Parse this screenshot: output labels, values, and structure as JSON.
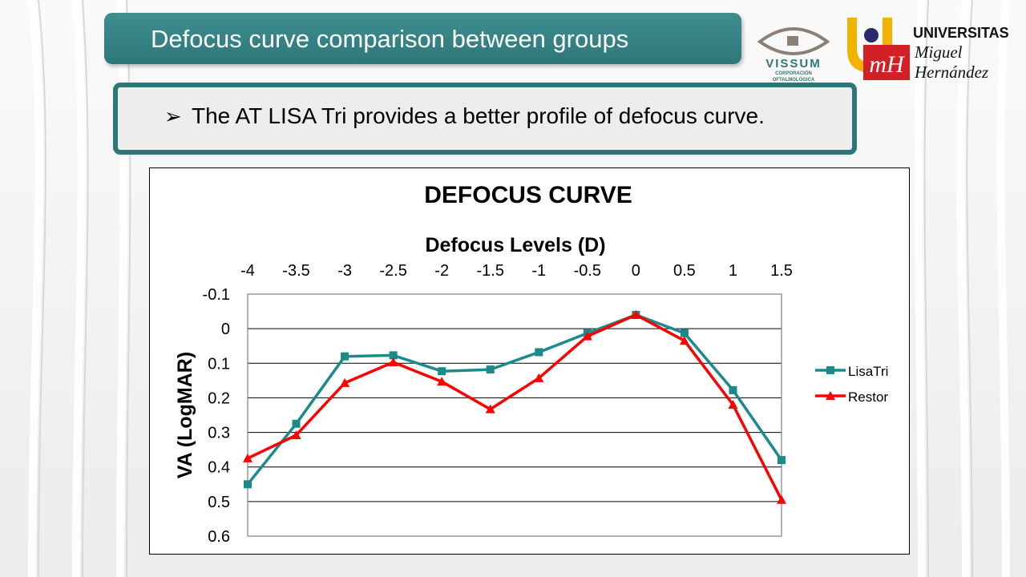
{
  "slide": {
    "title": "Defocus curve comparison between groups",
    "bullet_marker": "➢",
    "bullet": "The AT LISA Tri provides a better profile of defocus curve."
  },
  "logos": {
    "vissum": {
      "name": "VISSUM",
      "subtitle_line1": "CORPORACIÓN",
      "subtitle_line2": "OFTALMOLÓGICA"
    },
    "umh": {
      "line1": "UNIVERSITAS",
      "line2": "Miguel",
      "line3": "Hernández"
    }
  },
  "colors": {
    "teal": "#2e7779",
    "lisatri": "#1a8a8a",
    "restor": "#ff0000"
  },
  "chart_data": {
    "type": "line",
    "title": "DEFOCUS CURVE",
    "xlabel": "Defocus Levels (D)",
    "ylabel": "VA (LogMAR)",
    "x": [
      -4,
      -3.5,
      -3,
      -2.5,
      -2,
      -1.5,
      -1,
      -0.5,
      0,
      0.5,
      1,
      1.5
    ],
    "x_tick_labels": [
      "-4",
      "-3.5",
      "-3",
      "-2.5",
      "-2",
      "-1.5",
      "-1",
      "-0.5",
      "0",
      "0.5",
      "1",
      "1.5"
    ],
    "y_tick_labels": [
      "-0.1",
      "0",
      "0.1",
      "0.2",
      "0.3",
      "0.4",
      "0.5",
      "0.6"
    ],
    "ylim": [
      -0.1,
      0.6
    ],
    "y_inverted": true,
    "x_axis_position": "top",
    "grid": true,
    "legend_position": "right",
    "series": [
      {
        "name": "LisaTri",
        "marker": "square",
        "color": "#1a8a8a",
        "values": [
          0.45,
          0.275,
          0.08,
          0.077,
          0.123,
          0.118,
          0.068,
          0.013,
          -0.04,
          0.013,
          0.178,
          0.38
        ]
      },
      {
        "name": "Restor",
        "marker": "triangle",
        "color": "#ff0000",
        "values": [
          0.375,
          0.308,
          0.157,
          0.097,
          0.153,
          0.233,
          0.143,
          0.022,
          -0.04,
          0.035,
          0.22,
          0.495
        ]
      }
    ]
  }
}
